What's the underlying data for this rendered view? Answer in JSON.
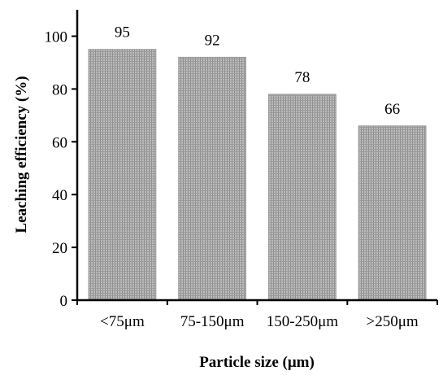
{
  "chart_data": {
    "type": "bar",
    "categories": [
      "<75μm",
      "75-150μm",
      "150-250μm",
      ">250μm"
    ],
    "values": [
      95,
      92,
      78,
      66
    ],
    "data_labels": [
      "95",
      "92",
      "78",
      "66"
    ],
    "title": "",
    "xlabel": "Particle size (μm)",
    "ylabel": "Leaching efficiency (%)",
    "ylim": [
      0,
      110
    ],
    "yticks": [
      0,
      20,
      40,
      60,
      80,
      100
    ],
    "ytick_labels": [
      "0",
      "20",
      "40",
      "60",
      "80",
      "100"
    ],
    "grid": false,
    "legend": "none",
    "bar_color": "#b3b3b3",
    "bar_pattern": "fine-hatched"
  }
}
